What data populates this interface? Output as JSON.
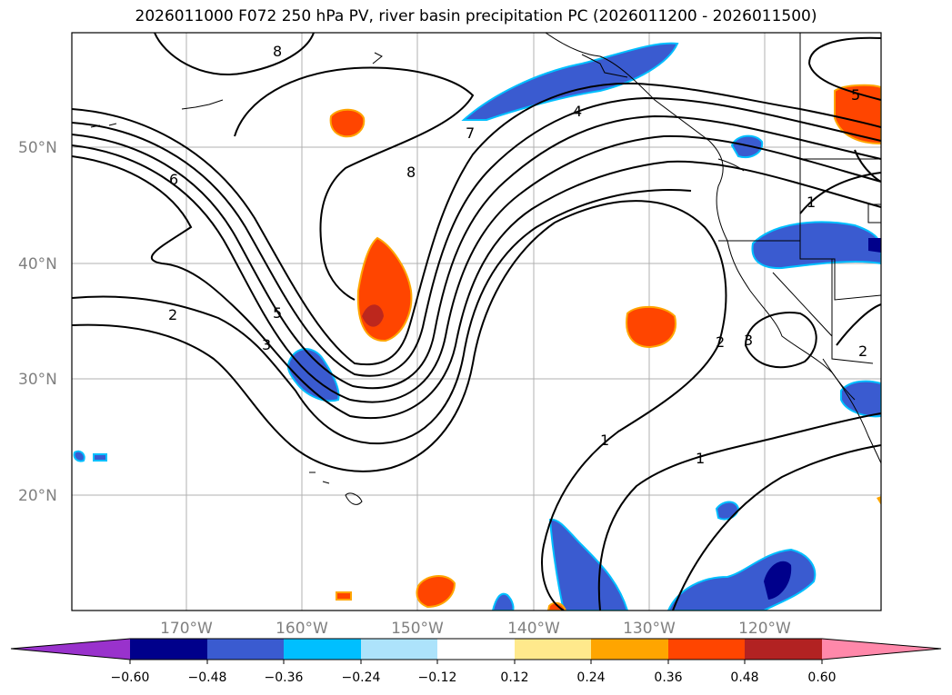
{
  "title": "2026011000 F072 250 hPa PV, river basin precipitation PC (2026011200 - 2026011500)",
  "map": {
    "lat_labels": [
      "50°N",
      "40°N",
      "30°N",
      "20°N"
    ],
    "lon_labels": [
      "170°W",
      "160°W",
      "150°W",
      "140°W",
      "130°W",
      "120°W"
    ],
    "contour_labels": [
      "8",
      "6",
      "5",
      "3",
      "2",
      "8",
      "7",
      "4",
      "1",
      "1",
      "2",
      "3",
      "1",
      "2",
      "5"
    ],
    "grid": true
  },
  "colorbar": {
    "ticks": [
      "−0.60",
      "−0.48",
      "−0.36",
      "−0.24",
      "−0.12",
      "0.12",
      "0.24",
      "0.36",
      "0.48",
      "0.60"
    ],
    "colors": [
      "#9932cc",
      "#00008b",
      "#3a5bd0",
      "#00bfff",
      "#ade3fb",
      "#ffffff",
      "#ffe98c",
      "#ffa500",
      "#ff4500",
      "#b22222",
      "#ff88aa"
    ]
  }
}
